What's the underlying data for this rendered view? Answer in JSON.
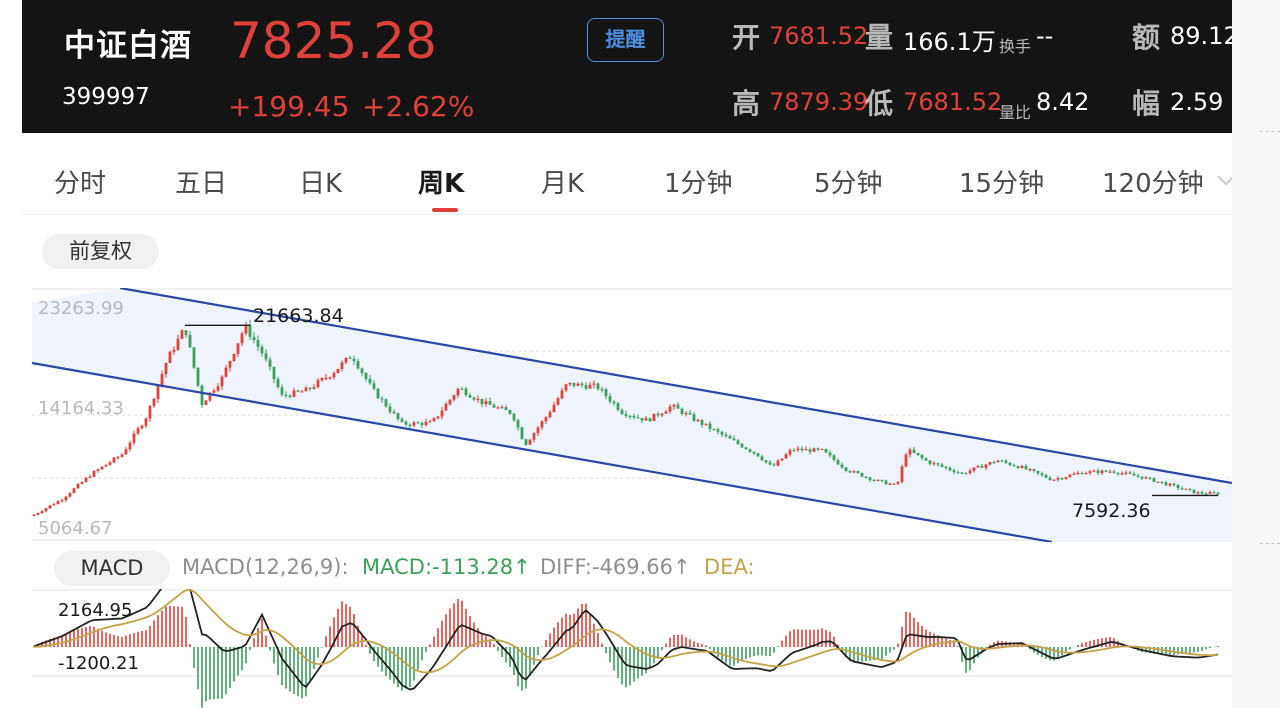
{
  "header": {
    "name": "中证白酒",
    "code": "399997",
    "price": "7825.28",
    "change_abs": "+199.45",
    "change_pct": "+2.62%",
    "alert_label": "提醒",
    "open_label": "开",
    "open_value": "7681.52",
    "volume_label": "量",
    "volume_value": "166.1万",
    "turnover_label": "换手",
    "turnover_value": "--",
    "amount_label": "额",
    "amount_value": "89.12",
    "high_label": "高",
    "high_value": "7879.39",
    "low_label": "低",
    "low_value": "7681.52",
    "vol_ratio_label": "量比",
    "vol_ratio_value": "8.42",
    "amplitude_label": "幅",
    "amplitude_value": "2.59"
  },
  "tabs": [
    {
      "label": "分时",
      "active": false
    },
    {
      "label": "五日",
      "active": false
    },
    {
      "label": "日K",
      "active": false
    },
    {
      "label": "周K",
      "active": true
    },
    {
      "label": "月K",
      "active": false
    },
    {
      "label": "1分钟",
      "active": false
    },
    {
      "label": "5分钟",
      "active": false
    },
    {
      "label": "15分钟",
      "active": false
    },
    {
      "label": "120分钟",
      "active": false
    }
  ],
  "adjust_label": "前复权",
  "kline": {
    "y_top_label": "23263.99",
    "y_mid_label": "14164.33",
    "y_bottom_label": "5064.67",
    "y_max": 23263.99,
    "y_min": 5064.67,
    "high_marker": "21663.84",
    "low_marker": "7592.36",
    "high_value": 21663.84,
    "low_value": 7592.36,
    "up_color": "#e0403a",
    "down_color": "#3aa05a",
    "channel_color": "#2a47a6",
    "channel_fill": "#eef3fc"
  },
  "macd": {
    "button_label": "MACD",
    "params": "MACD(12,26,9):",
    "macd_value": "MACD:-113.28↑",
    "diff_value": "DIFF:-469.66↑",
    "dea_label": "DEA:",
    "y_top_label": "2164.95",
    "y_bottom_label": "-1200.21",
    "params_color": "#8e8e8e",
    "macd_color": "#3aa05a",
    "diff_color": "#8e8e8e",
    "dea_color": "#c2a24a"
  }
}
